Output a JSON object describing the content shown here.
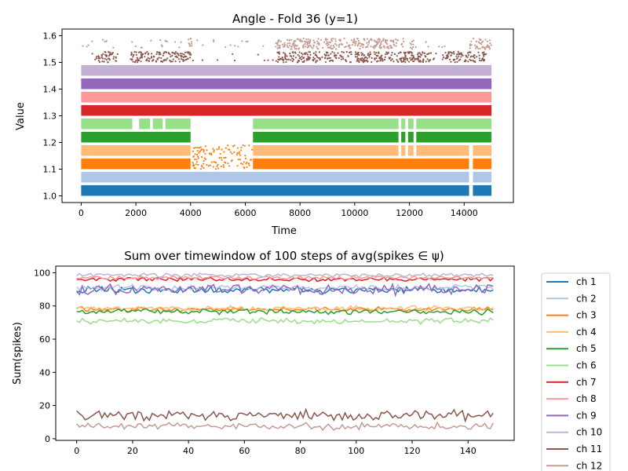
{
  "chart_data": [
    {
      "type": "scatter",
      "title": "Angle - Fold 36 (y=1)",
      "xlabel": "Time",
      "ylabel": "Value",
      "xlim": [
        -700,
        15800
      ],
      "ylim": [
        0.975,
        1.625
      ],
      "xticks": [
        0,
        2000,
        4000,
        6000,
        8000,
        10000,
        12000,
        14000
      ],
      "xtick_labels": [
        "0",
        "2000",
        "4000",
        "6000",
        "8000",
        "10000",
        "12000",
        "14000"
      ],
      "yticks": [
        1.0,
        1.1,
        1.2,
        1.3,
        1.4,
        1.5,
        1.6
      ],
      "ytick_labels": [
        "1.0",
        "1.1",
        "1.2",
        "1.3",
        "1.4",
        "1.5",
        "1.6"
      ],
      "grid": false,
      "bands": [
        {
          "channel": "ch 1",
          "color": "#1f77b4",
          "y_range": [
            1.0,
            1.04
          ],
          "x_gaps": [
            [
              14180,
              14320
            ]
          ]
        },
        {
          "channel": "ch 2",
          "color": "#aec7e8",
          "y_range": [
            1.05,
            1.09
          ],
          "x_gaps": [
            [
              14180,
              14320
            ]
          ]
        },
        {
          "channel": "ch 3",
          "color": "#ff7f0e",
          "y_range": [
            1.1,
            1.14
          ],
          "x_gaps": [
            [
              4000,
              6280
            ],
            [
              14180,
              14320
            ]
          ]
        },
        {
          "channel": "ch 4",
          "color": "#ffbb78",
          "y_range": [
            1.15,
            1.19
          ],
          "x_gaps": [
            [
              4000,
              6280
            ],
            [
              11600,
              11700
            ],
            [
              11850,
              11950
            ],
            [
              12150,
              12250
            ],
            [
              14180,
              14320
            ]
          ]
        },
        {
          "channel": "ch 5",
          "color": "#2ca02c",
          "y_range": [
            1.2,
            1.24
          ],
          "x_gaps": [
            [
              4000,
              6280
            ],
            [
              11600,
              11700
            ],
            [
              11850,
              11950
            ],
            [
              12150,
              12250
            ]
          ]
        },
        {
          "channel": "ch 6",
          "color": "#98df8a",
          "y_range": [
            1.25,
            1.29
          ],
          "x_gaps": [
            [
              1870,
              2120
            ],
            [
              2520,
              2620
            ],
            [
              2980,
              3080
            ],
            [
              4000,
              6280
            ],
            [
              11600,
              11700
            ],
            [
              11850,
              11950
            ],
            [
              12150,
              12250
            ]
          ]
        },
        {
          "channel": "ch 7",
          "color": "#d62728",
          "y_range": [
            1.3,
            1.34
          ],
          "x_gaps": []
        },
        {
          "channel": "ch 8",
          "color": "#ff9896",
          "y_range": [
            1.35,
            1.39
          ],
          "x_gaps": []
        },
        {
          "channel": "ch 9",
          "color": "#9467bd",
          "y_range": [
            1.4,
            1.44
          ],
          "x_gaps": []
        },
        {
          "channel": "ch 10",
          "color": "#c5b0d5",
          "y_range": [
            1.45,
            1.49
          ],
          "x_gaps": []
        }
      ],
      "sparse_points": [
        {
          "channel": "ch 11",
          "color": "#8c564b",
          "y_range": [
            1.5,
            1.54
          ],
          "x_segments": [
            [
              500,
              1300
            ],
            [
              1800,
              4100
            ],
            [
              7100,
              12800
            ],
            [
              13200,
              14800
            ]
          ],
          "outlier_y": [
            1.51,
            1.53
          ]
        },
        {
          "channel": "ch 12",
          "color": "#c49c94",
          "y_range": [
            1.55,
            1.59
          ],
          "x_segments": [
            [
              3900,
              4050
            ],
            [
              7100,
              11600
            ],
            [
              11700,
              11800
            ],
            [
              12000,
              12150
            ],
            [
              14200,
              15000
            ]
          ],
          "outlier_y": [
            1.56,
            1.58
          ]
        },
        {
          "channel": "ch 3/ch 4 intrusions",
          "color": "#ff7f0e",
          "y_range": [
            1.1,
            1.19
          ],
          "x_segments": [
            [
              4050,
              6250
            ]
          ],
          "outlier_y": []
        }
      ]
    },
    {
      "type": "line",
      "title": "Sum over timewindow of 100 steps of avg(spikes ∈ ψ)",
      "xlabel": "",
      "ylabel": "Sum(spikes)",
      "xlim": [
        -7.5,
        156.5
      ],
      "ylim": [
        -1,
        104
      ],
      "xticks": [
        0,
        20,
        40,
        60,
        80,
        100,
        120,
        140
      ],
      "xtick_labels": [
        "0",
        "20",
        "40",
        "60",
        "80",
        "100",
        "120",
        "140"
      ],
      "yticks": [
        0,
        20,
        40,
        60,
        80,
        100
      ],
      "ytick_labels": [
        "0",
        "20",
        "40",
        "60",
        "80",
        "100"
      ],
      "grid": false,
      "legend_position": "outside-right",
      "x_count": 150,
      "series": [
        {
          "name": "ch 1",
          "color": "#1f77b4",
          "mean": 89.5,
          "amp": 1.6
        },
        {
          "name": "ch 2",
          "color": "#aec7e8",
          "mean": 91.0,
          "amp": 1.3
        },
        {
          "name": "ch 3",
          "color": "#ff7f0e",
          "mean": 78.0,
          "amp": 1.0
        },
        {
          "name": "ch 4",
          "color": "#ffbb78",
          "mean": 78.5,
          "amp": 1.2
        },
        {
          "name": "ch 5",
          "color": "#2ca02c",
          "mean": 76.5,
          "amp": 1.3
        },
        {
          "name": "ch 6",
          "color": "#98df8a",
          "mean": 71.0,
          "amp": 1.3
        },
        {
          "name": "ch 7",
          "color": "#d62728",
          "mean": 96.0,
          "amp": 0.9
        },
        {
          "name": "ch 8",
          "color": "#ff9896",
          "mean": 97.0,
          "amp": 0.9
        },
        {
          "name": "ch 9",
          "color": "#9467bd",
          "mean": 90.0,
          "amp": 2.4
        },
        {
          "name": "ch 10",
          "color": "#c5b0d5",
          "mean": 98.5,
          "amp": 0.9
        },
        {
          "name": "ch 11",
          "color": "#8c564b",
          "mean": 14.0,
          "amp": 2.6
        },
        {
          "name": "ch 12",
          "color": "#c49c94",
          "mean": 7.5,
          "amp": 1.6
        }
      ]
    }
  ]
}
